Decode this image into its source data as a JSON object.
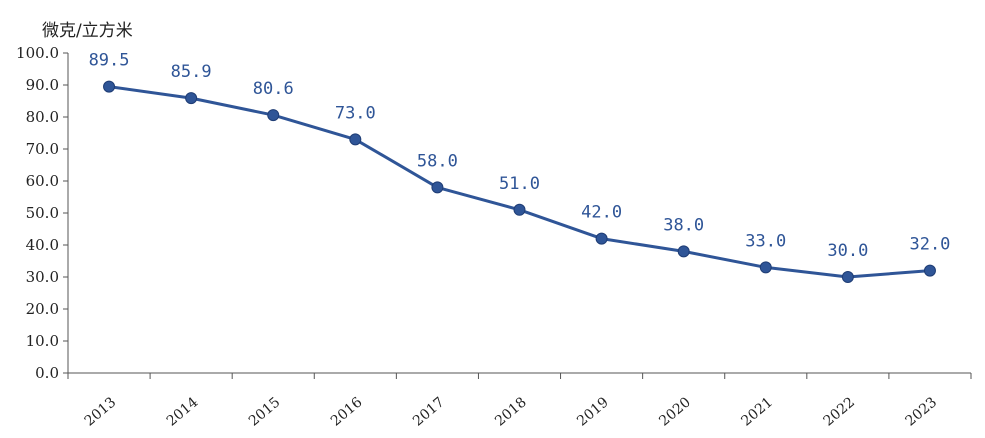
{
  "chart_data": {
    "type": "line",
    "ylabel": "微克/立方米",
    "x": [
      "2013",
      "2014",
      "2015",
      "2016",
      "2017",
      "2018",
      "2019",
      "2020",
      "2021",
      "2022",
      "2023"
    ],
    "values": [
      89.5,
      85.9,
      80.6,
      73.0,
      58.0,
      51.0,
      42.0,
      38.0,
      33.0,
      30.0,
      32.0
    ],
    "data_labels": [
      "89.5",
      "85.9",
      "80.6",
      "73.0",
      "58.0",
      "51.0",
      "42.0",
      "38.0",
      "33.0",
      "30.0",
      "32.0"
    ],
    "yticks": [
      "0.0",
      "10.0",
      "20.0",
      "30.0",
      "40.0",
      "50.0",
      "60.0",
      "70.0",
      "80.0",
      "90.0",
      "100.0"
    ],
    "ylim": [
      0,
      100
    ],
    "grid": false,
    "colors": {
      "line": "#2f5597",
      "marker": "#2f5597",
      "axis": "#555555"
    }
  }
}
